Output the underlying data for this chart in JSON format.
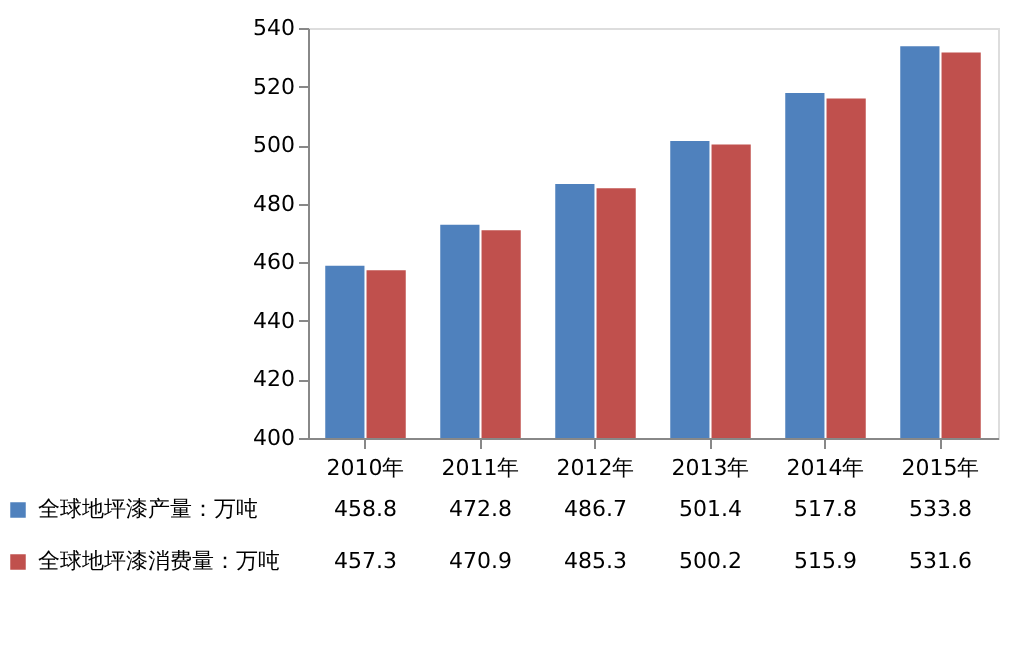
{
  "chart_data": {
    "type": "bar",
    "categories": [
      "2010年",
      "2011年",
      "2012年",
      "2013年",
      "2014年",
      "2015年"
    ],
    "series": [
      {
        "name": "全球地坪漆产量：万吨",
        "color": "#4f81bd",
        "values": [
          458.8,
          472.8,
          486.7,
          501.4,
          517.8,
          533.8
        ]
      },
      {
        "name": "全球地坪漆消费量：万吨",
        "color": "#c0504d",
        "values": [
          457.3,
          470.9,
          485.3,
          500.2,
          515.9,
          531.6
        ]
      }
    ],
    "ylim": [
      400,
      540
    ],
    "yticks": [
      400,
      420,
      440,
      460,
      480,
      500,
      520,
      540
    ],
    "grid": false,
    "legend": "bottom",
    "data_labels": true
  }
}
